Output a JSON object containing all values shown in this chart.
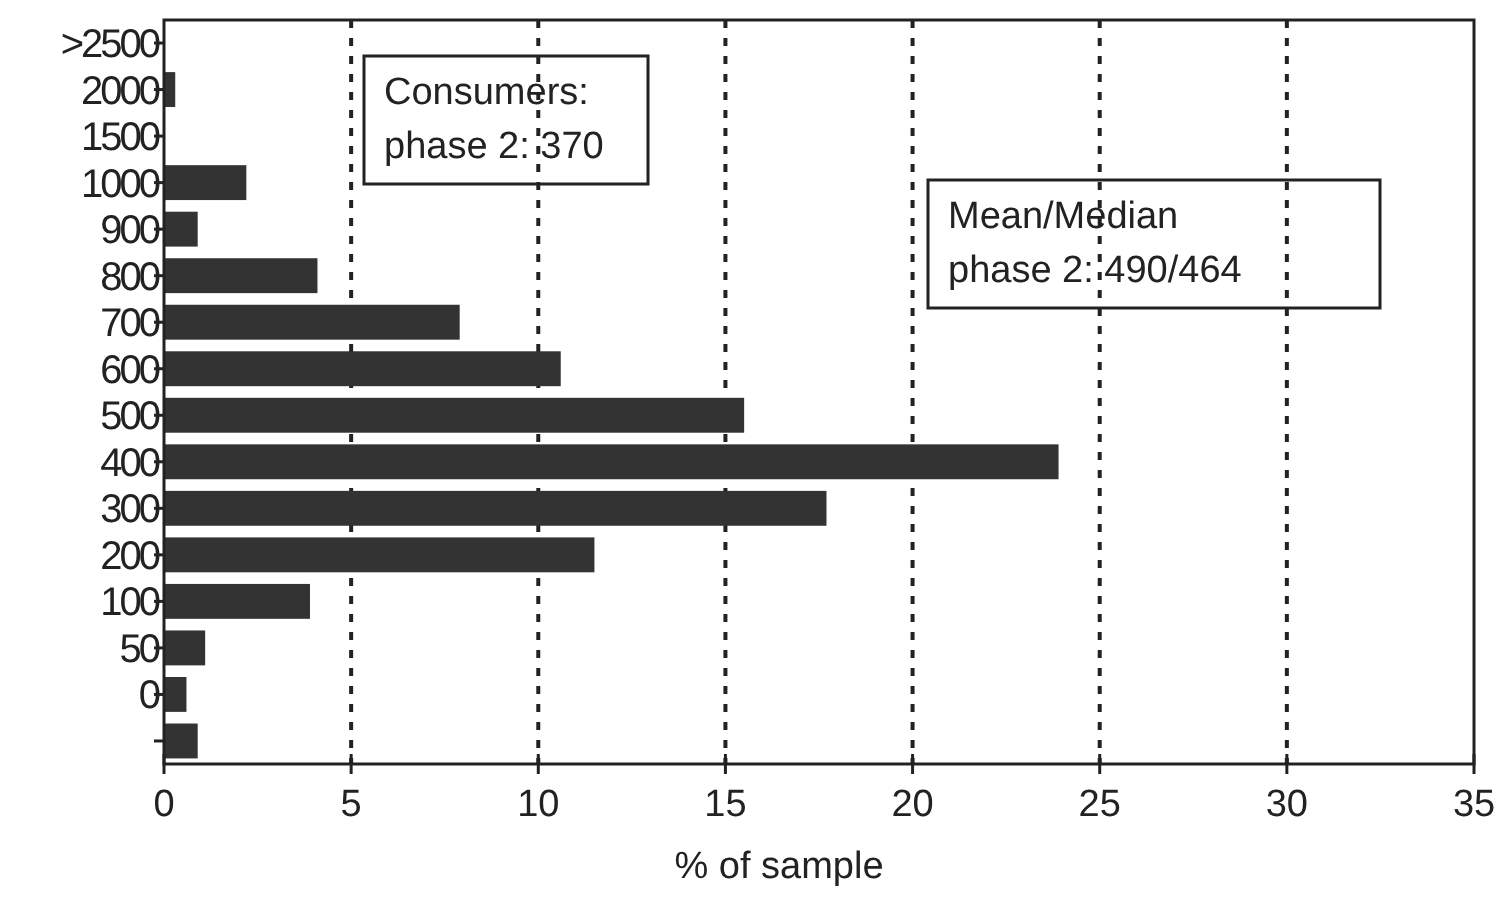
{
  "chart_data": {
    "type": "bar",
    "orientation": "horizontal",
    "xlabel": "% of sample",
    "categories": [
      ">2500",
      "2000",
      "1500",
      "1000",
      "900",
      "800",
      "700",
      "600",
      "500",
      "400",
      "300",
      "200",
      "100",
      "50",
      "0",
      null
    ],
    "values": [
      0,
      0.3,
      0,
      2.2,
      0.9,
      4.1,
      7.9,
      10.6,
      15.5,
      23.9,
      17.7,
      11.5,
      3.9,
      1.1,
      0.6,
      0.9
    ],
    "color": "#333333",
    "xlim": [
      0,
      35
    ],
    "xticks": [
      0,
      5,
      10,
      15,
      20,
      25,
      30,
      35
    ],
    "grid": "x",
    "annotations": [
      "Consumers:\nphase 2: 370",
      "Mean/Median\nphase 2: 490/464"
    ]
  }
}
